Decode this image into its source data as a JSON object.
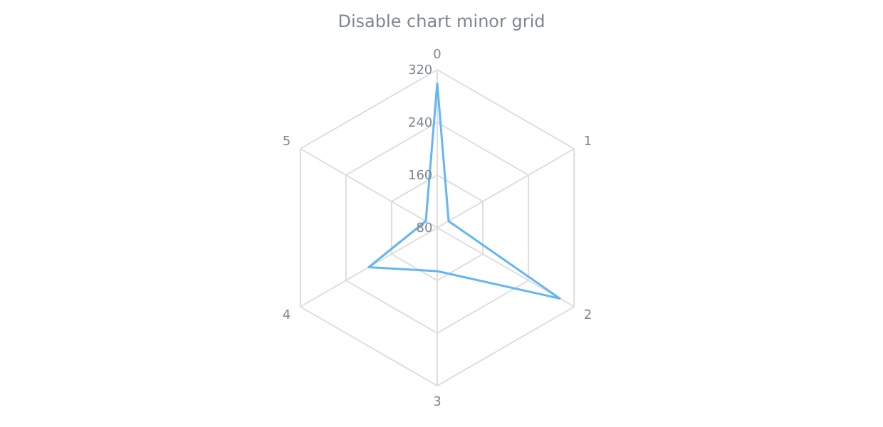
{
  "chart_data": {
    "type": "radar",
    "title": "Disable chart minor grid",
    "categories": [
      "0",
      "1",
      "2",
      "3",
      "4",
      "5"
    ],
    "series": [
      {
        "color": "#64b5f6",
        "values": [
          300,
          100,
          295,
          146,
          200,
          100
        ]
      }
    ],
    "ylim": [
      80,
      320
    ],
    "yticks": [
      80,
      160,
      240,
      320
    ],
    "grid": true,
    "marker": "none"
  }
}
